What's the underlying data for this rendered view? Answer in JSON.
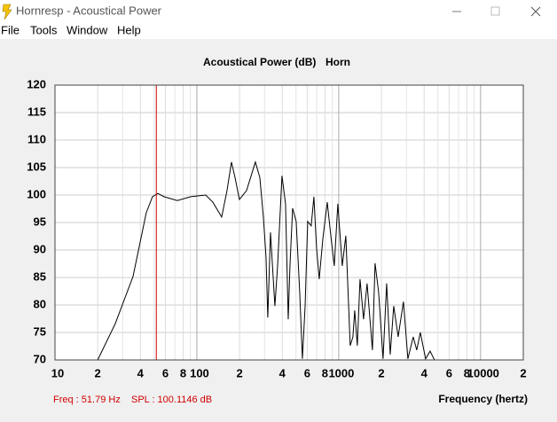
{
  "window": {
    "title": "Hornresp - Acoustical Power"
  },
  "menu": [
    "File",
    "Tools",
    "Window",
    "Help"
  ],
  "readout": {
    "freq": "Freq : 51.79 Hz",
    "spl": "SPL : 100.1146 dB"
  },
  "chart_data": {
    "type": "line",
    "title": "Acoustical Power (dB)",
    "subtitle": "Horn",
    "xlabel": "Frequency (hertz)",
    "xscale": "log",
    "xlim": [
      10,
      20000
    ],
    "ylim": [
      70,
      120
    ],
    "xticks": [
      10,
      {
        "value": 20,
        "label": "2"
      },
      {
        "value": 40,
        "label": "4"
      },
      {
        "value": 60,
        "label": "6"
      },
      {
        "value": 80,
        "label": "8"
      },
      100,
      {
        "value": 200,
        "label": "2"
      },
      {
        "value": 400,
        "label": "4"
      },
      {
        "value": 600,
        "label": "6"
      },
      {
        "value": 800,
        "label": "8"
      },
      1000,
      {
        "value": 2000,
        "label": "2"
      },
      {
        "value": 4000,
        "label": "4"
      },
      {
        "value": 6000,
        "label": "6"
      },
      {
        "value": 8000,
        "label": "8"
      },
      10000,
      {
        "value": 20000,
        "label": "2"
      }
    ],
    "xgrid_minor": [
      30,
      50,
      70,
      90,
      300,
      500,
      700,
      900,
      3000,
      5000,
      7000,
      9000
    ],
    "yticks": [
      70,
      75,
      80,
      85,
      90,
      95,
      100,
      105,
      110,
      115,
      120
    ],
    "grid": true,
    "color": "#000000",
    "cursor": {
      "x": 51.79,
      "color": "#d00000"
    },
    "x": [
      20,
      26.6,
      35.5,
      44.0,
      48.7,
      53.1,
      58.7,
      72.9,
      90.4,
      115.5,
      129.6,
      149.6,
      163.1,
      175.4,
      185.8,
      199.5,
      223.9,
      258.5,
      277.9,
      294.4,
      307.3,
      316.2,
      330.4,
      354.8,
      370.7,
      398.1,
      421.7,
      440.6,
      453.2,
      473.2,
      501.2,
      530.9,
      554.6,
      579.6,
      604.4,
      639.7,
      668.3,
      698.2,
      728.8,
      771.9,
      829.9,
      879.0,
      930.1,
      985.6,
      1059,
      1122,
      1205,
      1259,
      1296,
      1352,
      1413,
      1496,
      1585,
      1728,
      1804,
      1911,
      2054,
      2176,
      2306,
      2442,
      2624,
      2858,
      3073,
      3350,
      3548,
      3758,
      4098,
      4406,
      4732
    ],
    "values": [
      70.0,
      76.6,
      85.2,
      96.8,
      99.7,
      100.3,
      99.7,
      99.0,
      99.7,
      100.0,
      98.7,
      96.0,
      100.8,
      106.0,
      103.2,
      99.2,
      100.8,
      106.0,
      103.2,
      96.0,
      88.7,
      77.7,
      93.2,
      79.8,
      87.1,
      103.5,
      98.4,
      77.4,
      87.1,
      97.6,
      95.2,
      82.3,
      70.2,
      79.8,
      95.2,
      94.4,
      99.7,
      90.3,
      84.7,
      91.9,
      98.7,
      92.7,
      87.1,
      98.4,
      87.1,
      92.6,
      72.6,
      74.2,
      79.0,
      72.6,
      84.7,
      77.4,
      83.9,
      71.8,
      87.6,
      82.3,
      70.2,
      83.9,
      71.0,
      79.8,
      74.2,
      80.6,
      70.2,
      74.2,
      71.8,
      75.0,
      70.2,
      71.6,
      70.0
    ]
  }
}
